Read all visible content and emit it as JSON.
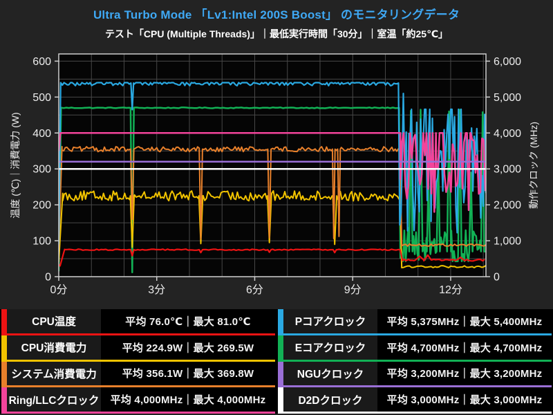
{
  "header": {
    "title": "Ultra Turbo Mode 「Lv1:Intel 200S Boost」 のモニタリングデータ",
    "subtitle": "テスト「CPU (Multiple Threads)」｜最低実行時間「30分」｜室温「約25℃」"
  },
  "colors": {
    "background": "#232323",
    "plot_bg": "#050505",
    "grid": "#484848",
    "axis_border": "#cfcfcf",
    "tick_text": "#ececec",
    "title_accent": "#3fa9f5",
    "legend_bg": "#000000",
    "legend_label_bg": "#1a1a1a"
  },
  "chart_data": {
    "type": "line",
    "title": "Ultra Turbo Mode 「Lv1:Intel 200S Boost」 のモニタリングデータ",
    "x_axis": {
      "lim": [
        0,
        13.08
      ],
      "minor_step": 1,
      "ticks": [
        {
          "v": 0,
          "label": "0分"
        },
        {
          "v": 3,
          "label": "3分"
        },
        {
          "v": 6,
          "label": "6分"
        },
        {
          "v": 9,
          "label": "9分"
        },
        {
          "v": 12,
          "label": "12分"
        }
      ]
    },
    "y_left": {
      "title": "温度 (℃)｜消費電力 (W)",
      "lim": [
        0,
        620
      ],
      "minor_step": 50,
      "ticks": [
        {
          "v": 0,
          "label": "0"
        },
        {
          "v": 100,
          "label": "100"
        },
        {
          "v": 200,
          "label": "200"
        },
        {
          "v": 300,
          "label": "300"
        },
        {
          "v": 400,
          "label": "400"
        },
        {
          "v": 500,
          "label": "500"
        },
        {
          "v": 600,
          "label": "600"
        }
      ]
    },
    "y_right": {
      "title": "動作クロック (MHz)",
      "lim": [
        0,
        6200
      ],
      "ticks": [
        {
          "v": 0,
          "label": "0"
        },
        {
          "v": 1000,
          "label": "1,000"
        },
        {
          "v": 2000,
          "label": "2,000"
        },
        {
          "v": 3000,
          "label": "3,000"
        },
        {
          "v": 4000,
          "label": "4,000"
        },
        {
          "v": 5000,
          "label": "5,000"
        },
        {
          "v": 6000,
          "label": "6,000"
        }
      ]
    },
    "series": [
      {
        "name": "Eコアクロック",
        "axis": "right",
        "color": "#12b155",
        "width": 2.5,
        "avg": 4700,
        "max": 4700,
        "unit": "MHz",
        "segments": [
          {
            "t0": 0.0,
            "t1": 0.07,
            "v0": 150,
            "v1": 4700
          },
          {
            "t0": 0.07,
            "t1": 10.42,
            "v": 4700,
            "noise": 12,
            "dt": 0.08
          },
          {
            "t0": 10.42,
            "t1": 10.46,
            "v0": 4700,
            "v1": 520
          },
          {
            "t0": 10.46,
            "t1": 13.08,
            "v": 760,
            "noise": 600,
            "dt": 0.04,
            "clamp": [
              430,
              2400
            ]
          }
        ],
        "dips": [
          {
            "t": 2.25,
            "v": 120,
            "base": 4700,
            "w": 0.05
          }
        ],
        "spikes": [
          {
            "t": 10.78,
            "v": 4620,
            "base": 700,
            "w": 0.05
          },
          {
            "t": 11.08,
            "v": 4650,
            "base": 700,
            "w": 0.06
          },
          {
            "t": 11.32,
            "v": 2600,
            "base": 700,
            "w": 0.05
          },
          {
            "t": 11.62,
            "v": 3300,
            "base": 700,
            "w": 0.05
          },
          {
            "t": 11.95,
            "v": 4600,
            "base": 700,
            "w": 0.06
          },
          {
            "t": 12.28,
            "v": 4650,
            "base": 700,
            "w": 0.05
          },
          {
            "t": 12.62,
            "v": 2900,
            "base": 700,
            "w": 0.05
          },
          {
            "t": 12.98,
            "v": 4580,
            "base": 700,
            "w": 0.05
          }
        ]
      },
      {
        "name": "CPU消費電力",
        "axis": "left",
        "color": "#f2c300",
        "width": 2,
        "avg": 224.9,
        "max": 269.5,
        "unit": "W",
        "segments": [
          {
            "t0": 0.0,
            "t1": 0.12,
            "v0": 40,
            "v1": 232
          },
          {
            "t0": 0.12,
            "t1": 10.45,
            "v": 225,
            "noise": 14,
            "dt": 0.05
          },
          {
            "t0": 10.45,
            "t1": 10.5,
            "v0": 225,
            "v1": 30
          },
          {
            "t0": 10.5,
            "t1": 13.08,
            "v": 28,
            "noise": 3,
            "dt": 0.06
          }
        ],
        "dips": [
          {
            "t": 2.25,
            "v": 82,
            "base": 225,
            "w": 0.06
          },
          {
            "t": 4.35,
            "v": 92,
            "base": 225,
            "w": 0.06
          },
          {
            "t": 6.45,
            "v": 95,
            "base": 225,
            "w": 0.06
          },
          {
            "t": 8.45,
            "v": 90,
            "base": 225,
            "w": 0.06
          }
        ]
      },
      {
        "name": "システム消費電力",
        "axis": "left",
        "color": "#e8802b",
        "width": 2,
        "avg": 356.1,
        "max": 369.8,
        "unit": "W",
        "segments": [
          {
            "t0": 0.0,
            "t1": 0.1,
            "v0": 80,
            "v1": 362
          },
          {
            "t0": 0.1,
            "t1": 10.45,
            "v": 355,
            "noise": 7,
            "dt": 0.05
          },
          {
            "t0": 10.45,
            "t1": 10.5,
            "v0": 355,
            "v1": 92
          },
          {
            "t0": 10.5,
            "t1": 13.08,
            "v": 88,
            "noise": 3,
            "dt": 0.06
          }
        ],
        "dips": [
          {
            "t": 2.25,
            "v": 160,
            "base": 355,
            "w": 0.05
          },
          {
            "t": 4.35,
            "v": 105,
            "base": 355,
            "w": 0.05
          },
          {
            "t": 6.45,
            "v": 108,
            "base": 355,
            "w": 0.05
          },
          {
            "t": 8.42,
            "v": 106,
            "base": 355,
            "w": 0.04
          },
          {
            "t": 8.58,
            "v": 112,
            "base": 355,
            "w": 0.04
          }
        ]
      },
      {
        "name": "CPU温度",
        "axis": "left",
        "color": "#ee1313",
        "width": 2.2,
        "avg": 76.0,
        "max": 81.0,
        "unit": "℃",
        "segments": [
          {
            "t0": 0.0,
            "t1": 0.04,
            "v0": 34,
            "v1": 30
          },
          {
            "t0": 0.04,
            "t1": 0.18,
            "v0": 30,
            "v1": 76
          },
          {
            "t0": 0.18,
            "t1": 10.45,
            "v": 75,
            "noise": 1.6,
            "dt": 0.07
          },
          {
            "t0": 10.45,
            "t1": 10.52,
            "v0": 75,
            "v1": 48
          },
          {
            "t0": 10.52,
            "t1": 13.08,
            "v": 46,
            "noise": 2.5,
            "dt": 0.06
          }
        ],
        "dips": [
          {
            "t": 2.25,
            "v": 58,
            "base": 75,
            "w": 0.05
          },
          {
            "t": 4.35,
            "v": 67,
            "base": 75,
            "w": 0.05
          },
          {
            "t": 6.45,
            "v": 68,
            "base": 75,
            "w": 0.05
          },
          {
            "t": 8.45,
            "v": 67,
            "base": 75,
            "w": 0.05
          }
        ],
        "spikes": [
          {
            "t": 11.05,
            "v": 57,
            "base": 47,
            "w": 0.12
          },
          {
            "t": 11.3,
            "v": 60,
            "base": 47,
            "w": 0.1
          },
          {
            "t": 12.3,
            "v": 54,
            "base": 47,
            "w": 0.1
          }
        ]
      },
      {
        "name": "Pコアクロック",
        "axis": "right",
        "color": "#2aa9e2",
        "width": 2.2,
        "avg": 5375,
        "max": 5400,
        "unit": "MHz",
        "segments": [
          {
            "t0": 0.0,
            "t1": 0.06,
            "v0": 900,
            "v1": 5400
          },
          {
            "t0": 0.06,
            "t1": 10.4,
            "v": 5390,
            "noise": 75,
            "dt": 0.05,
            "clamp": [
              5120,
              5400
            ]
          },
          {
            "t0": 10.4,
            "t1": 10.44,
            "v0": 5390,
            "v1": 1500
          },
          {
            "t0": 10.44,
            "t1": 13.08,
            "v": 3400,
            "noise": 2200,
            "dt": 0.04,
            "clamp": [
              800,
              4660
            ]
          }
        ],
        "dips": [
          {
            "t": 2.25,
            "v": 4650,
            "base": 5390,
            "w": 0.04
          }
        ],
        "spikes": [
          {
            "t": 10.55,
            "v": 5100,
            "base": 3000,
            "w": 0.04
          }
        ]
      },
      {
        "name": "Ring/LLCクロック",
        "axis": "right",
        "color": "#f3449b",
        "width": 2.5,
        "avg": 4000,
        "max": 4000,
        "unit": "MHz",
        "segments": [
          {
            "t0": 0.0,
            "t1": 0.05,
            "v0": 3500,
            "v1": 4000
          },
          {
            "t0": 0.05,
            "t1": 10.46,
            "v": 4000,
            "noise": 0
          },
          {
            "t0": 10.46,
            "t1": 13.08,
            "v": 3500,
            "noise": 1400,
            "dt": 0.05,
            "clamp": [
              1750,
              4000
            ]
          }
        ],
        "dips": [
          {
            "t": 11.5,
            "v": 1800,
            "base": 4000,
            "w": 0.05
          },
          {
            "t": 12.55,
            "v": 1850,
            "base": 4000,
            "w": 0.05
          }
        ]
      },
      {
        "name": "NGUクロック",
        "axis": "right",
        "color": "#9a6fd6",
        "width": 2.5,
        "avg": 3200,
        "max": 3200,
        "unit": "MHz",
        "segments": [
          {
            "t0": 0.0,
            "t1": 13.08,
            "v": 3200,
            "noise": 0
          }
        ]
      },
      {
        "name": "D2Dクロック",
        "axis": "right",
        "color": "#ffffff",
        "width": 2.5,
        "avg": 3000,
        "max": 3000,
        "unit": "MHz",
        "segments": [
          {
            "t0": 0.0,
            "t1": 13.08,
            "v": 3000,
            "noise": 0
          }
        ]
      }
    ]
  },
  "legend": {
    "left": [
      {
        "label": "CPU温度",
        "stats": "平均 76.0℃｜最大 81.0℃",
        "color": "#ee1313"
      },
      {
        "label": "CPU消費電力",
        "stats": "平均 224.9W｜最大 269.5W",
        "color": "#f2c300"
      },
      {
        "label": "システム消費電力",
        "stats": "平均 356.1W｜最大 369.8W",
        "color": "#e8802b"
      },
      {
        "label": "Ring/LLCクロック",
        "stats": "平均 4,000MHz｜最大 4,000MHz",
        "color": "#f3449b"
      }
    ],
    "right": [
      {
        "label": "Pコアクロック",
        "stats": "平均 5,375MHz｜最大 5,400MHz",
        "color": "#2aa9e2"
      },
      {
        "label": "Eコアクロック",
        "stats": "平均 4,700MHz｜最大 4,700MHz",
        "color": "#12b155"
      },
      {
        "label": "NGUクロック",
        "stats": "平均 3,200MHz｜最大 3,200MHz",
        "color": "#9a6fd6"
      },
      {
        "label": "D2Dクロック",
        "stats": "平均 3,000MHz｜最大 3,000MHz",
        "color": "#ffffff"
      }
    ]
  }
}
